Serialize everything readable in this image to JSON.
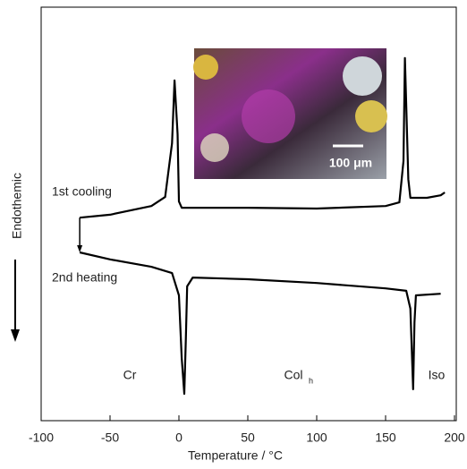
{
  "chart_data": {
    "type": "line",
    "x_label": "Temperature / °C",
    "y_label": "Endothemic",
    "xlim": [
      -100,
      200
    ],
    "xticks": [
      -100,
      -50,
      0,
      50,
      100,
      150,
      200
    ],
    "ylim": [
      0,
      100
    ],
    "series": [
      {
        "name": "1st cooling",
        "color": "#000000",
        "x": [
          -72,
          -50,
          -20,
          -10,
          -5,
          -3.2,
          -1,
          0,
          2,
          50,
          100,
          150,
          160,
          163,
          164,
          166.5,
          168,
          180,
          190,
          193
        ],
        "values": [
          49.1,
          49.8,
          51.9,
          54.1,
          67.1,
          82.3,
          69.3,
          53.0,
          51.5,
          51.5,
          51.3,
          51.9,
          52.8,
          62.8,
          87.7,
          58.4,
          53.9,
          53.9,
          54.5,
          55.2
        ]
      },
      {
        "name": "2nd heating",
        "color": "#000000",
        "x": [
          -72,
          -50,
          -20,
          -5,
          0,
          2,
          3.9,
          5,
          6,
          10,
          50,
          100,
          150,
          165,
          168,
          170,
          171,
          172,
          190
        ],
        "values": [
          40.7,
          39.0,
          37.2,
          35.7,
          30.3,
          15.2,
          6.5,
          19.5,
          32.5,
          34.6,
          34.2,
          33.3,
          32.0,
          31.4,
          27.1,
          7.6,
          23.8,
          30.3,
          30.7
        ]
      }
    ],
    "annotations": [
      {
        "text": "Cr"
      },
      {
        "text": "Col",
        "subscript": "h"
      },
      {
        "text": "Iso"
      },
      {
        "text": "100 μm"
      }
    ]
  }
}
